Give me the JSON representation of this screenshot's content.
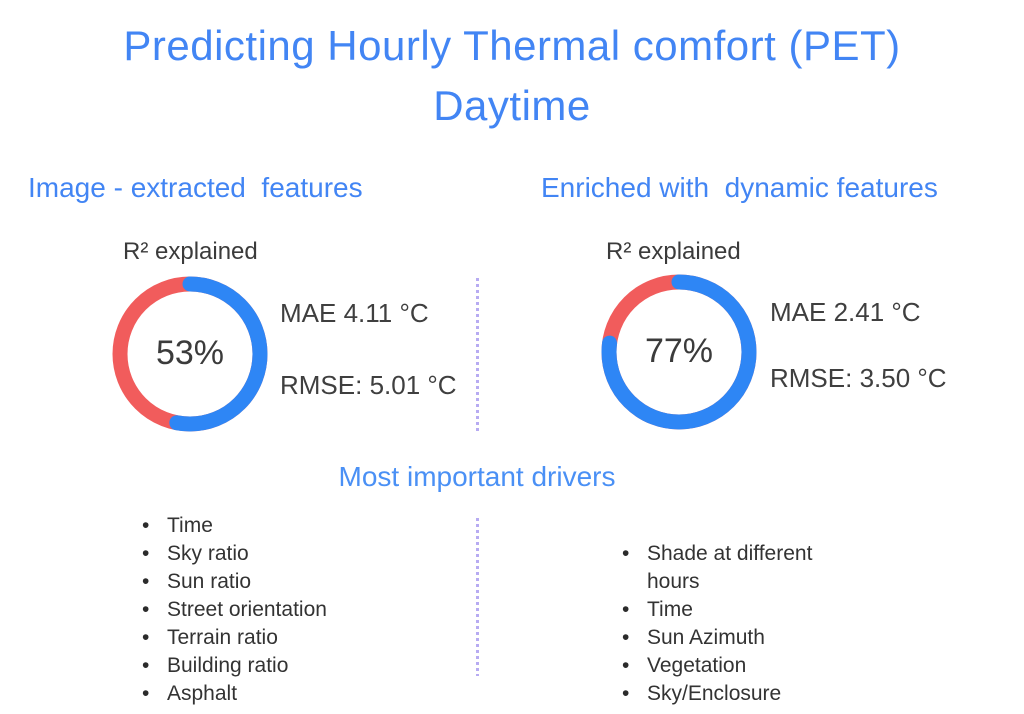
{
  "title": {
    "line1": "Predicting Hourly Thermal comfort (PET)",
    "line2": "Daytime"
  },
  "colors": {
    "accent_blue": "#4285f4",
    "donut_blue": "#2e86f5",
    "donut_red": "#f15c5c",
    "text_dark": "#3b3b3b",
    "divider_purple": "#b7abf2"
  },
  "drivers_heading": "Most important drivers",
  "panels": [
    {
      "header": "Image - extracted  features",
      "r2_label": "R² explained",
      "donut": {
        "percent": 53,
        "percent_label": "53%"
      },
      "mae": "MAE 4.11 °C",
      "rmse": "RMSE: 5.01 °C",
      "drivers": [
        "Time",
        "Sky ratio",
        "Sun ratio",
        "Street orientation",
        "Terrain ratio",
        "Building ratio",
        "Asphalt"
      ]
    },
    {
      "header": "Enriched with  dynamic features",
      "r2_label": "R² explained",
      "donut": {
        "percent": 77,
        "percent_label": "77%"
      },
      "mae": "MAE 2.41 °C",
      "rmse": "RMSE: 3.50 °C",
      "drivers": [
        "Shade at different hours",
        "Time",
        "Sun Azimuth",
        "Vegetation",
        "Sky/Enclosure"
      ]
    }
  ],
  "chart_data": [
    {
      "type": "pie",
      "donut": true,
      "title": "R² explained — Image-extracted features",
      "center_label": "53%",
      "slices": [
        {
          "label": "R² explained",
          "value": 53,
          "color": "#2e86f5"
        },
        {
          "label": "unexplained",
          "value": 47,
          "color": "#f15c5c"
        }
      ],
      "annotations": [
        "MAE 4.11 °C",
        "RMSE: 5.01 °C"
      ]
    },
    {
      "type": "pie",
      "donut": true,
      "title": "R² explained — Enriched with dynamic features",
      "center_label": "77%",
      "slices": [
        {
          "label": "R² explained",
          "value": 77,
          "color": "#2e86f5"
        },
        {
          "label": "unexplained",
          "value": 23,
          "color": "#f15c5c"
        }
      ],
      "annotations": [
        "MAE 2.41 °C",
        "RMSE: 3.50 °C"
      ]
    }
  ]
}
